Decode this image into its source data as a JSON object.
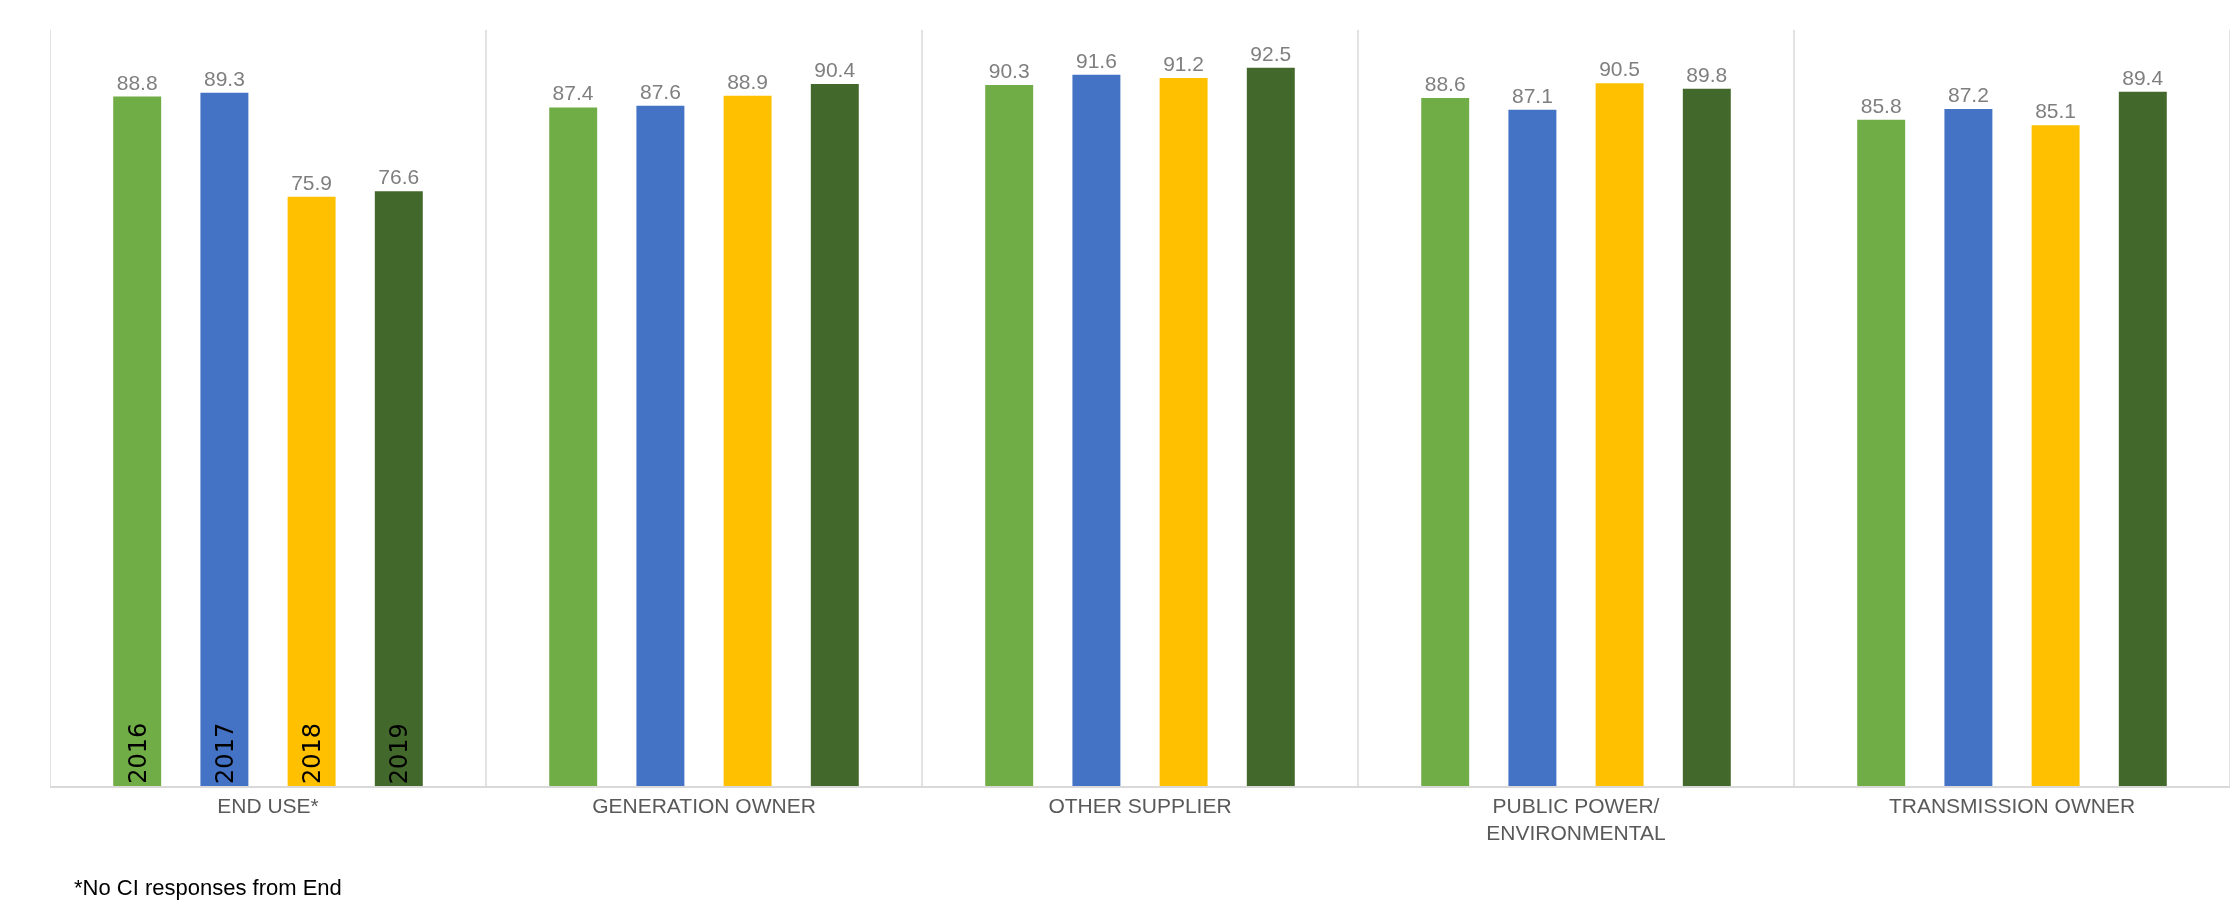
{
  "chart_data": {
    "type": "bar",
    "categories": [
      "END USE*",
      "GENERATION OWNER",
      "OTHER SUPPLIER",
      "PUBLIC POWER/ ENVIRONMENTAL",
      "TRANSMISSION OWNER"
    ],
    "series": [
      {
        "name": "2016",
        "color": "#70ad47",
        "values": [
          88.8,
          87.4,
          90.3,
          88.6,
          85.8
        ]
      },
      {
        "name": "2017",
        "color": "#4472c4",
        "values": [
          89.3,
          87.6,
          91.6,
          87.1,
          87.2
        ]
      },
      {
        "name": "2018",
        "color": "#ffc000",
        "values": [
          75.9,
          88.9,
          91.2,
          90.5,
          85.1
        ]
      },
      {
        "name": "2019",
        "color": "#43682b",
        "values": [
          76.6,
          90.4,
          92.5,
          89.8,
          89.4
        ]
      }
    ],
    "data_labels": true,
    "legend": false,
    "grid": "x",
    "tick_labels": "x",
    "annotations": [
      "*No CI responses from End"
    ]
  }
}
